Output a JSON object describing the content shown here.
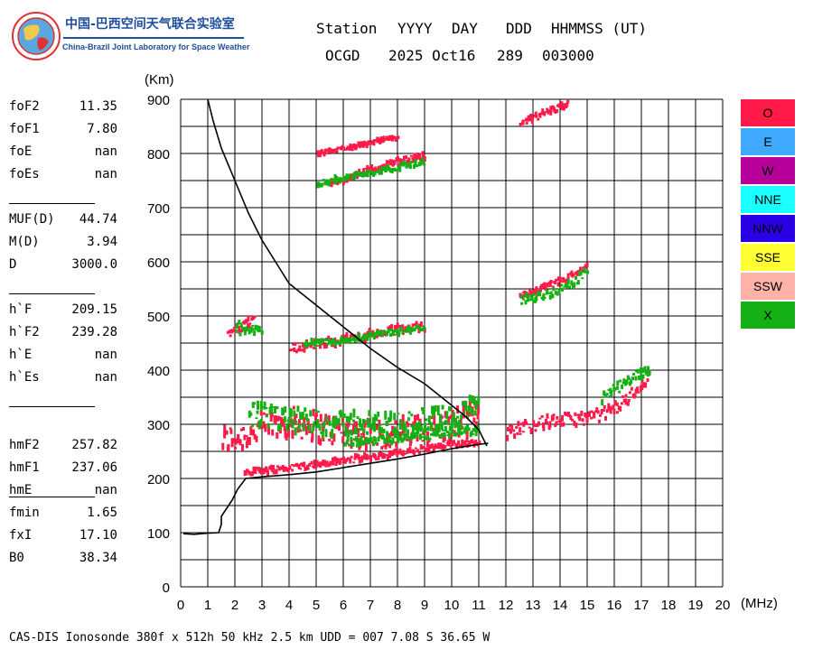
{
  "logo": {
    "chinese_name": "中国-巴西空间天气联合实验室",
    "english_name": "China-Brazil Joint Laboratory for Space Weather"
  },
  "header": {
    "labels": [
      "Station",
      "YYYY",
      "DAY",
      "DDD",
      "HHMMSS (UT)"
    ],
    "values": [
      "OCGD",
      "2025 Oct16",
      "289",
      "003000"
    ]
  },
  "parameters": {
    "group1": [
      {
        "name": "foF2",
        "value": "11.35"
      },
      {
        "name": "foF1",
        "value": "7.80"
      },
      {
        "name": "foE",
        "value": "nan"
      },
      {
        "name": "foEs",
        "value": "nan"
      }
    ],
    "group2": [
      {
        "name": "MUF(D)",
        "value": "44.74"
      },
      {
        "name": "M(D)",
        "value": "3.94"
      },
      {
        "name": "D",
        "value": "3000.0"
      }
    ],
    "group3": [
      {
        "name": "h`F",
        "value": "209.15"
      },
      {
        "name": "h`F2",
        "value": "239.28"
      },
      {
        "name": "h`E",
        "value": "nan"
      },
      {
        "name": "h`Es",
        "value": "nan"
      }
    ],
    "group4": [
      {
        "name": "hmF2",
        "value": "257.82"
      },
      {
        "name": "hmF1",
        "value": "237.06"
      },
      {
        "name": "hmE",
        "value": "nan"
      }
    ],
    "group5": [
      {
        "name": "fmin",
        "value": "1.65"
      },
      {
        "name": "fxI",
        "value": "17.10"
      },
      {
        "name": "B0",
        "value": "38.34"
      }
    ]
  },
  "legend": [
    {
      "label": "O",
      "color": "#ff1a4a",
      "text_color": "#000000"
    },
    {
      "label": "E",
      "color": "#3fa9ff",
      "text_color": "#000000"
    },
    {
      "label": "W",
      "color": "#b8009a",
      "text_color": "#000000"
    },
    {
      "label": "NNE",
      "color": "#1affff",
      "text_color": "#000000"
    },
    {
      "label": "NNW",
      "color": "#2a00e6",
      "text_color": "#000000"
    },
    {
      "label": "SSE",
      "color": "#ffff33",
      "text_color": "#000000"
    },
    {
      "label": "SSW",
      "color": "#ffb3a8",
      "text_color": "#000000"
    },
    {
      "label": "X",
      "color": "#14b014",
      "text_color": "#000000"
    }
  ],
  "footer": "CAS-DIS Ionosonde 380f x 512h 50 kHz 2.5 km UDD = 007 7.08 S 36.65 W",
  "chart_data": {
    "type": "scatter",
    "title": "",
    "xlabel": "(MHz)",
    "ylabel": "(Km)",
    "xlim": [
      0,
      20
    ],
    "ylim": [
      0,
      900
    ],
    "xticks": [
      0,
      1,
      2,
      3,
      4,
      5,
      6,
      7,
      8,
      9,
      10,
      11,
      12,
      13,
      14,
      15,
      16,
      17,
      18,
      19,
      20
    ],
    "yticks": [
      0,
      100,
      200,
      300,
      400,
      500,
      600,
      700,
      800,
      900
    ],
    "grid": true,
    "series": [
      {
        "name": "O",
        "color": "#ff1a4a",
        "traces": [
          {
            "points": [
              [
                1.5,
                270
              ],
              [
                2,
                275
              ],
              [
                2.5,
                285
              ],
              [
                3,
                295
              ],
              [
                3.5,
                300
              ],
              [
                4,
                305
              ],
              [
                4.5,
                300
              ],
              [
                5,
                295
              ],
              [
                5.5,
                290
              ],
              [
                6,
                288
              ],
              [
                6.5,
                285
              ],
              [
                7,
                285
              ],
              [
                7.5,
                283
              ],
              [
                8,
                283
              ],
              [
                8.5,
                285
              ],
              [
                9,
                290
              ],
              [
                9.5,
                293
              ],
              [
                10,
                300
              ],
              [
                10.5,
                308
              ],
              [
                11,
                318
              ]
            ],
            "spread": 28
          },
          {
            "points": [
              [
                2.3,
                213
              ],
              [
                3,
                215
              ],
              [
                4,
                220
              ],
              [
                5,
                226
              ],
              [
                6,
                233
              ],
              [
                7,
                240
              ],
              [
                8,
                247
              ],
              [
                9,
                254
              ],
              [
                10,
                262
              ],
              [
                11,
                270
              ]
            ],
            "spread": 6
          },
          {
            "points": [
              [
                12,
                285
              ],
              [
                12.5,
                293
              ],
              [
                13,
                300
              ],
              [
                13.5,
                305
              ],
              [
                14,
                308
              ],
              [
                14.5,
                310
              ],
              [
                15,
                312
              ],
              [
                15.5,
                318
              ],
              [
                16,
                330
              ],
              [
                16.5,
                350
              ],
              [
                17,
                375
              ],
              [
                17.3,
                390
              ]
            ],
            "spread": 12
          },
          {
            "points": [
              [
                4,
                440
              ],
              [
                4.5,
                445
              ],
              [
                5,
                448
              ],
              [
                5.5,
                452
              ],
              [
                6,
                457
              ],
              [
                6.5,
                462
              ],
              [
                7,
                466
              ],
              [
                7.5,
                470
              ],
              [
                8,
                475
              ],
              [
                8.5,
                478
              ],
              [
                9,
                482
              ]
            ],
            "spread": 8
          },
          {
            "points": [
              [
                1.7,
                470
              ],
              [
                2,
                475
              ],
              [
                2.3,
                480
              ],
              [
                2.5,
                490
              ],
              [
                2.7,
                495
              ]
            ],
            "spread": 10
          },
          {
            "points": [
              [
                5.5,
                745
              ],
              [
                6,
                752
              ],
              [
                6.5,
                762
              ],
              [
                7,
                770
              ],
              [
                7.5,
                778
              ],
              [
                8,
                785
              ],
              [
                8.5,
                790
              ],
              [
                9,
                795
              ]
            ],
            "spread": 6
          },
          {
            "points": [
              [
                5,
                800
              ],
              [
                5.5,
                805
              ],
              [
                6,
                810
              ],
              [
                6.5,
                815
              ],
              [
                7,
                820
              ],
              [
                7.5,
                825
              ],
              [
                8,
                830
              ]
            ],
            "spread": 3
          },
          {
            "points": [
              [
                12.5,
                540
              ],
              [
                13,
                545
              ],
              [
                13.5,
                555
              ],
              [
                14,
                565
              ],
              [
                14.5,
                578
              ],
              [
                15,
                590
              ]
            ],
            "spread": 6
          },
          {
            "points": [
              [
                12.5,
                855
              ],
              [
                13,
                865
              ],
              [
                13.5,
                877
              ],
              [
                14,
                887
              ],
              [
                14.3,
                893
              ]
            ],
            "spread": 6
          }
        ]
      },
      {
        "name": "X",
        "color": "#14b014",
        "traces": [
          {
            "points": [
              [
                2.5,
                320
              ],
              [
                3,
                315
              ],
              [
                3.5,
                310
              ],
              [
                4,
                305
              ],
              [
                4.5,
                310
              ],
              [
                5,
                305
              ],
              [
                5.5,
                300
              ],
              [
                6,
                300
              ],
              [
                6.5,
                305
              ],
              [
                7,
                300
              ],
              [
                7.5,
                298
              ],
              [
                8,
                300
              ],
              [
                8.5,
                305
              ],
              [
                9,
                308
              ],
              [
                9.5,
                310
              ],
              [
                10,
                315
              ],
              [
                10.5,
                325
              ],
              [
                11,
                335
              ]
            ],
            "spread": 22
          },
          {
            "points": [
              [
                6,
                265
              ],
              [
                7,
                270
              ],
              [
                8,
                275
              ],
              [
                9,
                280
              ],
              [
                10,
                285
              ],
              [
                11,
                290
              ]
            ],
            "spread": 8
          },
          {
            "points": [
              [
                15.5,
                350
              ],
              [
                16,
                365
              ],
              [
                16.5,
                380
              ],
              [
                17,
                395
              ],
              [
                17.3,
                405
              ]
            ],
            "spread": 10
          },
          {
            "points": [
              [
                5,
                745
              ],
              [
                6,
                755
              ],
              [
                7,
                765
              ],
              [
                8,
                775
              ],
              [
                9,
                785
              ]
            ],
            "spread": 5
          },
          {
            "points": [
              [
                2,
                480
              ],
              [
                2.5,
                470
              ],
              [
                3,
                478
              ]
            ],
            "spread": 12
          },
          {
            "points": [
              [
                4.5,
                450
              ],
              [
                6,
                455
              ],
              [
                7.5,
                468
              ],
              [
                9,
                478
              ]
            ],
            "spread": 5
          },
          {
            "points": [
              [
                12.5,
                530
              ],
              [
                13.5,
                540
              ],
              [
                14.5,
                560
              ],
              [
                15,
                590
              ]
            ],
            "spread": 8
          }
        ]
      }
    ],
    "trace_profile": {
      "name": "Electron density profile",
      "color": "#000000",
      "points": [
        [
          0.1,
          98
        ],
        [
          0.5,
          97
        ],
        [
          1,
          99
        ],
        [
          1.4,
          100
        ],
        [
          1.5,
          115
        ],
        [
          1.5,
          130
        ],
        [
          1.7,
          145
        ],
        [
          1.9,
          160
        ],
        [
          2.1,
          180
        ],
        [
          2.4,
          200
        ],
        [
          3,
          203
        ],
        [
          4,
          207
        ],
        [
          5,
          212
        ],
        [
          6,
          220
        ],
        [
          7,
          228
        ],
        [
          8,
          236
        ],
        [
          9,
          245
        ],
        [
          10,
          255
        ],
        [
          11,
          263
        ],
        [
          11.35,
          265
        ]
      ]
    },
    "trace_virtual": {
      "name": "Virtual height curve",
      "color": "#000000",
      "points": [
        [
          1,
          900
        ],
        [
          1.2,
          860
        ],
        [
          1.5,
          810
        ],
        [
          2,
          750
        ],
        [
          2.5,
          690
        ],
        [
          3,
          640
        ],
        [
          3.5,
          600
        ],
        [
          4,
          560
        ],
        [
          5,
          520
        ],
        [
          6,
          480
        ],
        [
          7,
          440
        ],
        [
          8,
          405
        ],
        [
          9,
          375
        ],
        [
          9.5,
          355
        ],
        [
          10,
          335
        ],
        [
          10.5,
          315
        ],
        [
          11,
          290
        ],
        [
          11.3,
          260
        ]
      ]
    }
  }
}
